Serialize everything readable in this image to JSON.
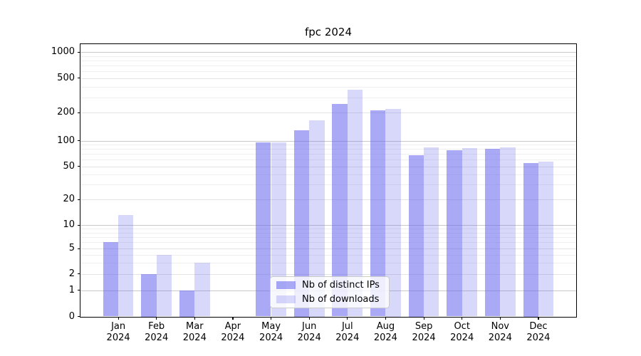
{
  "chart_data": {
    "type": "bar",
    "title": "fpc 2024",
    "categories": [
      "Jan 2024",
      "Feb 2024",
      "Mar 2024",
      "Apr 2024",
      "May 2024",
      "Jun 2024",
      "Jul 2024",
      "Aug 2024",
      "Sep 2024",
      "Oct 2024",
      "Nov 2024",
      "Dec 2024"
    ],
    "series": [
      {
        "name": "Nb of distinct IPs",
        "values": [
          6,
          2,
          1,
          0,
          95,
          130,
          250,
          210,
          68,
          77,
          80,
          55
        ],
        "color": "rgba(98, 98, 239, 0.55)"
      },
      {
        "name": "Nb of downloads",
        "values": [
          13,
          4,
          3,
          0,
          95,
          165,
          365,
          220,
          84,
          82,
          84,
          57
        ],
        "color": "rgba(98, 98, 239, 0.25)"
      }
    ],
    "y_ticks": [
      0,
      1,
      2,
      5,
      10,
      20,
      50,
      100,
      200,
      500,
      1000
    ],
    "y_minor_ticks": [
      3,
      4,
      6,
      7,
      8,
      9,
      30,
      40,
      60,
      70,
      80,
      90,
      300,
      400,
      600,
      700,
      800,
      900
    ],
    "ylim": [
      0,
      1000
    ],
    "scale": "quasi-log",
    "xlabel": "",
    "ylabel": "",
    "grid": "horizontal major and minor, on",
    "legend_position": "lower center",
    "colors": {
      "bar_dark": "#a9a9f6",
      "bar_light": "#d8d8fb",
      "grid_major": "#c9c9c9",
      "grid_mid": "#e3e3e3",
      "grid_minor": "#efefef",
      "axis": "#000000",
      "background": "#ffffff"
    }
  }
}
